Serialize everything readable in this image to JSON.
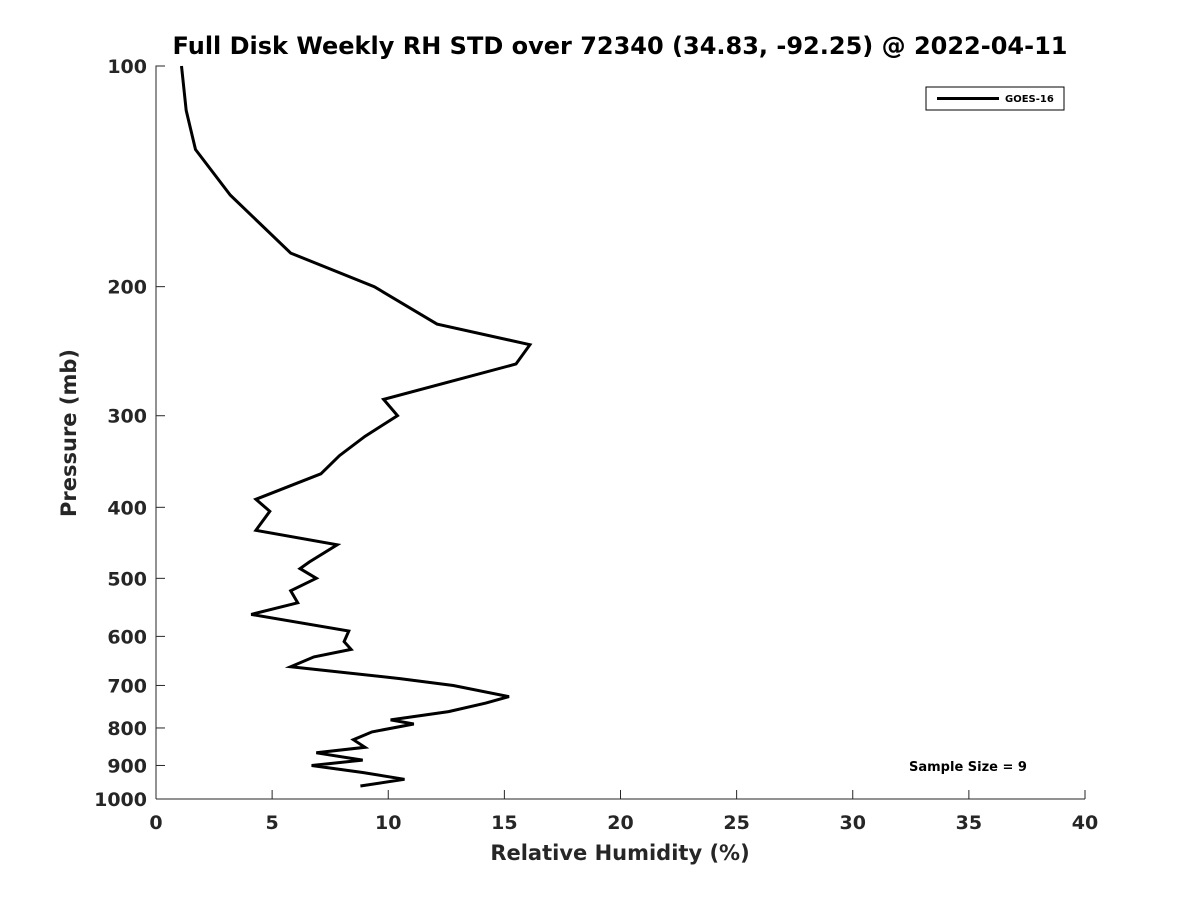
{
  "chart_data": {
    "type": "line",
    "title": "Full Disk Weekly RH STD over 72340 (34.83, -92.25) @ 2022-04-11",
    "xlabel": "Relative Humidity (%)",
    "ylabel": "Pressure (mb)",
    "xlim": [
      0,
      40
    ],
    "ylim": [
      100,
      1000
    ],
    "y_scale": "log",
    "y_reversed": true,
    "x_ticks": [
      0,
      5,
      10,
      15,
      20,
      25,
      30,
      35,
      40
    ],
    "y_ticks": [
      100,
      200,
      300,
      400,
      500,
      600,
      700,
      800,
      900,
      1000
    ],
    "grid": false,
    "legend_position": "top-right",
    "annotation": "Sample Size = 9",
    "series": [
      {
        "name": "GOES-16",
        "color": "#000000",
        "points": [
          [
            1.1,
            100
          ],
          [
            1.3,
            115
          ],
          [
            1.7,
            130
          ],
          [
            3.2,
            150
          ],
          [
            5.8,
            180
          ],
          [
            9.4,
            200
          ],
          [
            12.1,
            225
          ],
          [
            16.1,
            240
          ],
          [
            15.5,
            255
          ],
          [
            9.8,
            285
          ],
          [
            10.4,
            300
          ],
          [
            9.0,
            320
          ],
          [
            7.9,
            340
          ],
          [
            7.1,
            360
          ],
          [
            4.3,
            390
          ],
          [
            4.9,
            405
          ],
          [
            4.3,
            430
          ],
          [
            7.8,
            450
          ],
          [
            6.6,
            475
          ],
          [
            6.2,
            485
          ],
          [
            6.9,
            500
          ],
          [
            5.8,
            520
          ],
          [
            6.1,
            540
          ],
          [
            4.1,
            560
          ],
          [
            8.3,
            590
          ],
          [
            8.1,
            610
          ],
          [
            8.4,
            625
          ],
          [
            6.8,
            640
          ],
          [
            5.8,
            660
          ],
          [
            10.5,
            685
          ],
          [
            12.8,
            700
          ],
          [
            15.2,
            725
          ],
          [
            14.2,
            740
          ],
          [
            12.6,
            760
          ],
          [
            10.1,
            780
          ],
          [
            11.1,
            790
          ],
          [
            9.3,
            810
          ],
          [
            8.5,
            830
          ],
          [
            9.0,
            850
          ],
          [
            6.9,
            865
          ],
          [
            8.9,
            885
          ],
          [
            6.7,
            900
          ],
          [
            8.9,
            920
          ],
          [
            10.7,
            940
          ],
          [
            8.8,
            960
          ]
        ]
      }
    ]
  }
}
